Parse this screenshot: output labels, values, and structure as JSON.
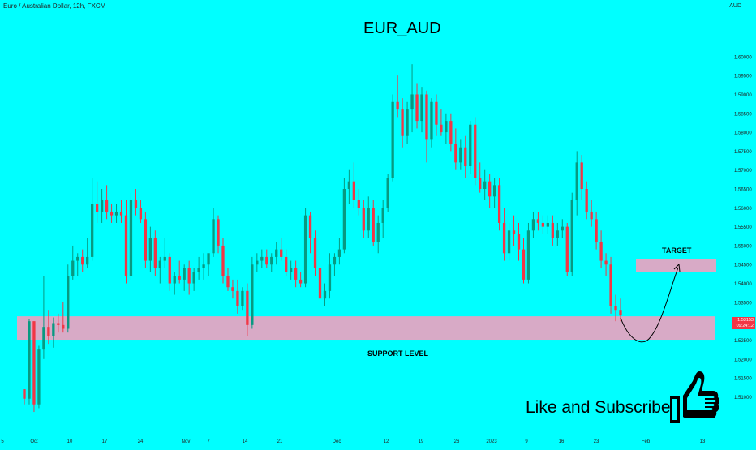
{
  "header": {
    "symbol_info": "Euro / Australian Dollar, 12h, FXCM",
    "currency": "AUD"
  },
  "chart_data": {
    "type": "candlestick",
    "title": "EUR_AUD",
    "ylim": [
      1.5058,
      1.6079
    ],
    "y_ticks": [
      "1.60000",
      "1.59500",
      "1.59000",
      "1.58500",
      "1.58000",
      "1.57500",
      "1.57000",
      "1.56500",
      "1.56000",
      "1.55500",
      "1.55000",
      "1.54500",
      "1.54000",
      "1.53500",
      "1.53000",
      "1.52500",
      "1.52000",
      "1.51500",
      "1.51000"
    ],
    "x_ticks": [
      "5",
      "Oct",
      "10",
      "17",
      "24",
      "Nov",
      "7",
      "14",
      "21",
      "Dec",
      "12",
      "19",
      "26",
      "2023",
      "9",
      "16",
      "23",
      "Feb",
      "13"
    ],
    "current_price": "1.53153",
    "current_price_sub": "09:24:12",
    "annotations": {
      "support": "SUPPORT LEVEL",
      "support_zone": [
        1.5251,
        1.5313
      ],
      "target": "TARGET",
      "target_zone": [
        1.5431,
        1.5464
      ]
    },
    "colors": {
      "up": "#089981",
      "down": "#f23645",
      "zone": "#d8aac6",
      "background": "#00ffff"
    },
    "candles": [
      [
        1.512,
        1.512,
        1.508,
        1.5095
      ],
      [
        1.5095,
        1.5305,
        1.508,
        1.53
      ],
      [
        1.53,
        1.53,
        1.506,
        1.508
      ],
      [
        1.508,
        1.5235,
        1.507,
        1.5225
      ],
      [
        1.5225,
        1.542,
        1.52,
        1.5285
      ],
      [
        1.5285,
        1.533,
        1.524,
        1.526
      ],
      [
        1.526,
        1.531,
        1.523,
        1.5295
      ],
      [
        1.5295,
        1.532,
        1.527,
        1.529
      ],
      [
        1.529,
        1.535,
        1.527,
        1.528
      ],
      [
        1.528,
        1.545,
        1.527,
        1.542
      ],
      [
        1.542,
        1.55,
        1.541,
        1.546
      ],
      [
        1.546,
        1.548,
        1.542,
        1.547
      ],
      [
        1.547,
        1.549,
        1.543,
        1.545
      ],
      [
        1.545,
        1.552,
        1.544,
        1.547
      ],
      [
        1.547,
        1.568,
        1.546,
        1.561
      ],
      [
        1.561,
        1.567,
        1.556,
        1.559
      ],
      [
        1.559,
        1.565,
        1.556,
        1.562
      ],
      [
        1.562,
        1.566,
        1.557,
        1.559
      ],
      [
        1.559,
        1.561,
        1.556,
        1.558
      ],
      [
        1.558,
        1.561,
        1.556,
        1.559
      ],
      [
        1.559,
        1.562,
        1.556,
        1.558
      ],
      [
        1.558,
        1.562,
        1.54,
        1.542
      ],
      [
        1.542,
        1.564,
        1.541,
        1.562
      ],
      [
        1.562,
        1.565,
        1.558,
        1.56
      ],
      [
        1.56,
        1.562,
        1.556,
        1.557
      ],
      [
        1.557,
        1.559,
        1.544,
        1.546
      ],
      [
        1.546,
        1.555,
        1.543,
        1.552
      ],
      [
        1.552,
        1.554,
        1.542,
        1.544
      ],
      [
        1.544,
        1.547,
        1.54,
        1.546
      ],
      [
        1.546,
        1.552,
        1.544,
        1.547
      ],
      [
        1.547,
        1.548,
        1.538,
        1.54
      ],
      [
        1.54,
        1.543,
        1.537,
        1.542
      ],
      [
        1.542,
        1.546,
        1.54,
        1.541
      ],
      [
        1.541,
        1.545,
        1.538,
        1.544
      ],
      [
        1.544,
        1.546,
        1.537,
        1.54
      ],
      [
        1.54,
        1.544,
        1.538,
        1.543
      ],
      [
        1.543,
        1.547,
        1.541,
        1.544
      ],
      [
        1.544,
        1.548,
        1.541,
        1.545
      ],
      [
        1.545,
        1.547,
        1.542,
        1.548
      ],
      [
        1.548,
        1.56,
        1.547,
        1.557
      ],
      [
        1.557,
        1.558,
        1.548,
        1.55
      ],
      [
        1.55,
        1.552,
        1.54,
        1.542
      ],
      [
        1.542,
        1.544,
        1.538,
        1.539
      ],
      [
        1.539,
        1.541,
        1.536,
        1.538
      ],
      [
        1.538,
        1.541,
        1.532,
        1.534
      ],
      [
        1.534,
        1.539,
        1.533,
        1.538
      ],
      [
        1.538,
        1.54,
        1.526,
        1.529
      ],
      [
        1.529,
        1.547,
        1.528,
        1.545
      ],
      [
        1.545,
        1.548,
        1.543,
        1.546
      ],
      [
        1.546,
        1.549,
        1.544,
        1.547
      ],
      [
        1.547,
        1.549,
        1.544,
        1.545
      ],
      [
        1.545,
        1.548,
        1.543,
        1.547
      ],
      [
        1.547,
        1.551,
        1.545,
        1.549
      ],
      [
        1.549,
        1.552,
        1.546,
        1.547
      ],
      [
        1.547,
        1.549,
        1.542,
        1.543
      ],
      [
        1.543,
        1.546,
        1.541,
        1.544
      ],
      [
        1.544,
        1.546,
        1.539,
        1.541
      ],
      [
        1.541,
        1.543,
        1.539,
        1.54
      ],
      [
        1.54,
        1.56,
        1.539,
        1.558
      ],
      [
        1.558,
        1.559,
        1.548,
        1.552
      ],
      [
        1.552,
        1.554,
        1.542,
        1.544
      ],
      [
        1.544,
        1.546,
        1.533,
        1.536
      ],
      [
        1.536,
        1.54,
        1.534,
        1.538
      ],
      [
        1.538,
        1.548,
        1.536,
        1.545
      ],
      [
        1.545,
        1.548,
        1.542,
        1.547
      ],
      [
        1.547,
        1.552,
        1.545,
        1.549
      ],
      [
        1.549,
        1.568,
        1.548,
        1.565
      ],
      [
        1.565,
        1.57,
        1.561,
        1.567
      ],
      [
        1.567,
        1.572,
        1.56,
        1.562
      ],
      [
        1.562,
        1.565,
        1.558,
        1.56
      ],
      [
        1.56,
        1.562,
        1.552,
        1.554
      ],
      [
        1.554,
        1.563,
        1.552,
        1.56
      ],
      [
        1.56,
        1.562,
        1.55,
        1.551
      ],
      [
        1.551,
        1.558,
        1.548,
        1.556
      ],
      [
        1.556,
        1.562,
        1.552,
        1.56
      ],
      [
        1.56,
        1.569,
        1.559,
        1.568
      ],
      [
        1.568,
        1.59,
        1.567,
        1.588
      ],
      [
        1.588,
        1.595,
        1.584,
        1.586
      ],
      [
        1.586,
        1.589,
        1.576,
        1.579
      ],
      [
        1.579,
        1.588,
        1.577,
        1.586
      ],
      [
        1.586,
        1.598,
        1.58,
        1.59
      ],
      [
        1.59,
        1.593,
        1.581,
        1.583
      ],
      [
        1.583,
        1.592,
        1.58,
        1.59
      ],
      [
        1.59,
        1.591,
        1.572,
        1.578
      ],
      [
        1.578,
        1.589,
        1.576,
        1.588
      ],
      [
        1.588,
        1.59,
        1.579,
        1.582
      ],
      [
        1.582,
        1.586,
        1.579,
        1.58
      ],
      [
        1.58,
        1.585,
        1.577,
        1.583
      ],
      [
        1.583,
        1.585,
        1.575,
        1.577
      ],
      [
        1.577,
        1.581,
        1.57,
        1.572
      ],
      [
        1.572,
        1.578,
        1.57,
        1.576
      ],
      [
        1.576,
        1.579,
        1.568,
        1.571
      ],
      [
        1.571,
        1.583,
        1.569,
        1.582
      ],
      [
        1.582,
        1.584,
        1.566,
        1.568
      ],
      [
        1.568,
        1.572,
        1.564,
        1.565
      ],
      [
        1.565,
        1.57,
        1.562,
        1.567
      ],
      [
        1.567,
        1.569,
        1.56,
        1.563
      ],
      [
        1.563,
        1.568,
        1.56,
        1.566
      ],
      [
        1.566,
        1.568,
        1.554,
        1.556
      ],
      [
        1.556,
        1.56,
        1.546,
        1.548
      ],
      [
        1.548,
        1.556,
        1.546,
        1.554
      ],
      [
        1.554,
        1.558,
        1.55,
        1.553
      ],
      [
        1.553,
        1.556,
        1.546,
        1.549
      ],
      [
        1.549,
        1.552,
        1.54,
        1.541
      ],
      [
        1.541,
        1.556,
        1.54,
        1.554
      ],
      [
        1.554,
        1.559,
        1.552,
        1.557
      ],
      [
        1.557,
        1.559,
        1.554,
        1.556
      ],
      [
        1.556,
        1.558,
        1.553,
        1.555
      ],
      [
        1.555,
        1.558,
        1.553,
        1.556
      ],
      [
        1.556,
        1.558,
        1.55,
        1.552
      ],
      [
        1.552,
        1.556,
        1.55,
        1.554
      ],
      [
        1.554,
        1.557,
        1.552,
        1.555
      ],
      [
        1.555,
        1.556,
        1.542,
        1.543
      ],
      [
        1.543,
        1.564,
        1.542,
        1.562
      ],
      [
        1.562,
        1.575,
        1.558,
        1.572
      ],
      [
        1.572,
        1.574,
        1.562,
        1.565
      ],
      [
        1.565,
        1.567,
        1.557,
        1.559
      ],
      [
        1.559,
        1.562,
        1.555,
        1.557
      ],
      [
        1.557,
        1.559,
        1.549,
        1.551
      ],
      [
        1.551,
        1.554,
        1.544,
        1.546
      ],
      [
        1.546,
        1.548,
        1.542,
        1.545
      ],
      [
        1.545,
        1.547,
        1.532,
        1.534
      ],
      [
        1.534,
        1.537,
        1.53,
        1.533
      ],
      [
        1.533,
        1.536,
        1.53,
        1.5315
      ]
    ]
  },
  "footer": {
    "cta": "Like and Subscribe"
  }
}
